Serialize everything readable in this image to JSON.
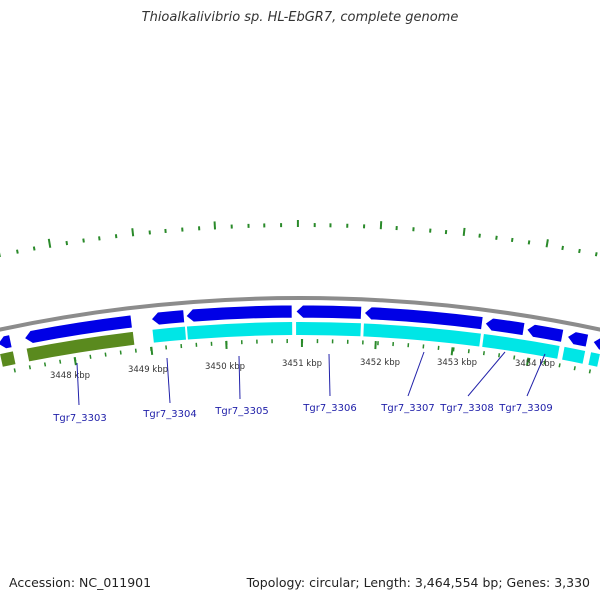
{
  "title": "Thioalkalivibrio sp. HL-EbGR7, complete genome",
  "accession": "Accession: NC_011901",
  "topology": "Topology: circular; Length: 3,464,554 bp; Genes: 3,330",
  "colors": {
    "backbone": "#8c8c8c",
    "forward_gene": "#0000e6",
    "reverse_gene": "#00e6e6",
    "rna_track": "#5a8a1e",
    "tick": "#2a8a2a",
    "label": "#2222aa",
    "scale_text": "#333333"
  },
  "scale_labels": [
    "3448 kbp",
    "3449 kbp",
    "3450 kbp",
    "3451 kbp",
    "3452 kbp",
    "3453 kbp",
    "3454 kbp"
  ],
  "gene_labels": [
    "Tgr7_3303",
    "Tgr7_3304",
    "Tgr7_3305",
    "Tgr7_3306",
    "Tgr7_3307",
    "Tgr7_3308",
    "Tgr7_3309"
  ]
}
